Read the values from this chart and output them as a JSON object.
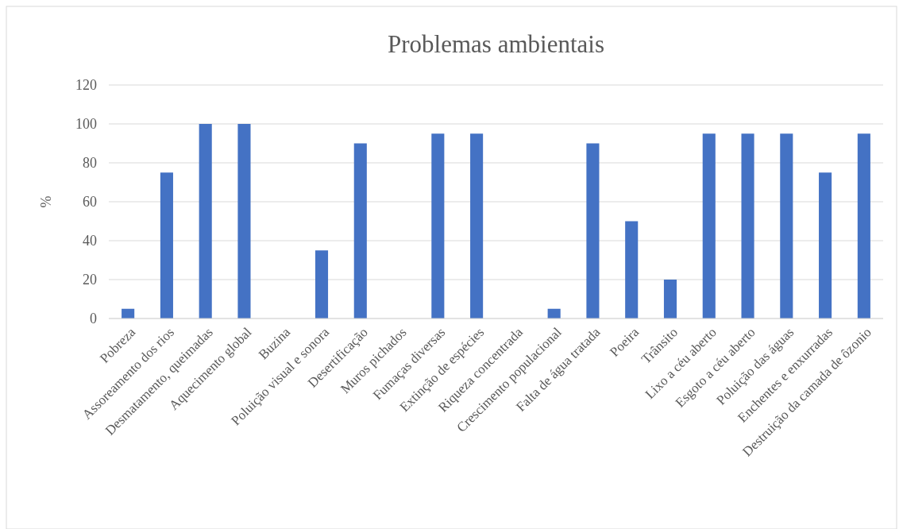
{
  "chart_data": {
    "type": "bar",
    "title": "Problemas ambientais",
    "ylabel": "%",
    "categories": [
      "Pobreza",
      "Assoreamento dos rios",
      "Desmatamento, queimadas",
      "Aquecimento global",
      "Buzina",
      "Poluição visual e sonora",
      "Desertificação",
      "Muros pichados",
      "Fumaças diversas",
      "Extinção de espécies",
      "Riqueza concentrada",
      "Crescimento populacional",
      "Falta de água tratada",
      "Poeira",
      "Trânsito",
      "Lixo a céu aberto",
      "Esgoto a céu aberto",
      "Poluição das águas",
      "Enchentes e enxurradas",
      "Destruição da camada de ôzonio"
    ],
    "values": [
      5,
      75,
      100,
      100,
      0,
      35,
      90,
      0,
      95,
      95,
      0,
      5,
      90,
      50,
      20,
      95,
      95,
      95,
      75,
      95
    ],
    "color": "#4472c4",
    "ylim": [
      0,
      120
    ],
    "yticks": [
      0,
      20,
      40,
      60,
      80,
      100,
      120
    ],
    "grid": "y"
  }
}
